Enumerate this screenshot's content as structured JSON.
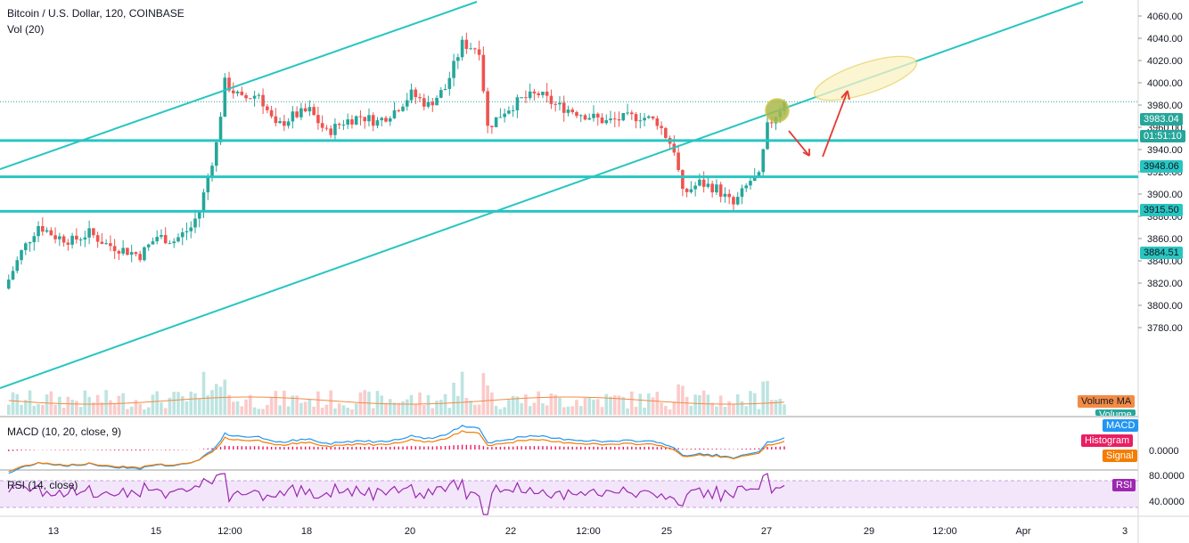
{
  "header": {
    "symbol_line": "Bitcoin / U.S. Dollar, 120, COINBASE",
    "volume_label": "Vol (20)"
  },
  "price_axis": {
    "ticks": [
      "4060.00",
      "4040.00",
      "4020.00",
      "4000.00",
      "3980.00",
      "3960.00",
      "3940.00",
      "3920.00",
      "3900.00",
      "3880.00",
      "3860.00",
      "3840.00",
      "3820.00",
      "3800.00",
      "3780.00"
    ],
    "tick_values": [
      4060,
      4040,
      4020,
      4000,
      3980,
      3960,
      3940,
      3920,
      3900,
      3880,
      3860,
      3840,
      3820,
      3800,
      3780
    ],
    "current_price": "3983.04",
    "countdown": "01:51:10",
    "level_labels": [
      "3948.06",
      "3915.50",
      "3884.51"
    ]
  },
  "time_axis": {
    "labels": [
      "13",
      "15",
      "12:00",
      "18",
      "20",
      "22",
      "12:00",
      "25",
      "27",
      "29",
      "12:00",
      "Apr",
      "3"
    ]
  },
  "legend_badges": {
    "volume_ma": "Volume MA",
    "volume": "Volume",
    "macd": "MACD",
    "histogram": "Histogram",
    "signal": "Signal",
    "rsi": "RSI"
  },
  "macd_panel": {
    "title": "MACD (10, 20, close, 9)",
    "tick": "0.0000"
  },
  "rsi_panel": {
    "title": "RSI (14, close)",
    "ticks": [
      "80.0000",
      "40.0000"
    ]
  },
  "colors": {
    "up": "#26a69a",
    "down": "#ef5350",
    "trendline": "#28c5c1",
    "volume_ma": "#f28b45",
    "macd": "#2196f3",
    "signal": "#f57c00",
    "histogram": "#e91e63",
    "rsi": "#9c27b0",
    "annotation": "#e53935"
  },
  "chart_data": {
    "type": "candlestick",
    "series_price": [
      {
        "t": 0,
        "c": 3815
      },
      {
        "t": 4,
        "c": 3848
      },
      {
        "t": 8,
        "c": 3872
      },
      {
        "t": 12,
        "c": 3862
      },
      {
        "t": 16,
        "c": 3858
      },
      {
        "t": 20,
        "c": 3865
      },
      {
        "t": 24,
        "c": 3855
      },
      {
        "t": 28,
        "c": 3850
      },
      {
        "t": 32,
        "c": 3845
      },
      {
        "t": 36,
        "c": 3862
      },
      {
        "t": 40,
        "c": 3858
      },
      {
        "t": 44,
        "c": 3870
      },
      {
        "t": 46,
        "c": 3885
      },
      {
        "t": 48,
        "c": 3915
      },
      {
        "t": 50,
        "c": 3945
      },
      {
        "t": 52,
        "c": 4000
      },
      {
        "t": 56,
        "c": 3985
      },
      {
        "t": 60,
        "c": 3990
      },
      {
        "t": 64,
        "c": 3960
      },
      {
        "t": 68,
        "c": 3970
      },
      {
        "t": 72,
        "c": 3975
      },
      {
        "t": 76,
        "c": 3955
      },
      {
        "t": 80,
        "c": 3965
      },
      {
        "t": 84,
        "c": 3970
      },
      {
        "t": 88,
        "c": 3965
      },
      {
        "t": 92,
        "c": 3975
      },
      {
        "t": 96,
        "c": 3990
      },
      {
        "t": 100,
        "c": 3980
      },
      {
        "t": 104,
        "c": 3995
      },
      {
        "t": 108,
        "c": 4035
      },
      {
        "t": 112,
        "c": 4030
      },
      {
        "t": 114,
        "c": 3960
      },
      {
        "t": 118,
        "c": 3975
      },
      {
        "t": 122,
        "c": 3985
      },
      {
        "t": 126,
        "c": 3990
      },
      {
        "t": 130,
        "c": 3980
      },
      {
        "t": 134,
        "c": 3975
      },
      {
        "t": 138,
        "c": 3970
      },
      {
        "t": 142,
        "c": 3965
      },
      {
        "t": 146,
        "c": 3968
      },
      {
        "t": 150,
        "c": 3970
      },
      {
        "t": 154,
        "c": 3965
      },
      {
        "t": 158,
        "c": 3940
      },
      {
        "t": 160,
        "c": 3900
      },
      {
        "t": 164,
        "c": 3910
      },
      {
        "t": 168,
        "c": 3905
      },
      {
        "t": 172,
        "c": 3890
      },
      {
        "t": 176,
        "c": 3912
      },
      {
        "t": 178,
        "c": 3915
      },
      {
        "t": 180,
        "c": 3960
      },
      {
        "t": 184,
        "c": 3983
      }
    ],
    "horizontal_levels": [
      3948.06,
      3915.5,
      3884.51
    ],
    "last_price": 3983.04,
    "ylim": [
      3765,
      4070
    ],
    "macd_range": [
      -1,
      1
    ],
    "rsi_ylim": [
      20,
      90
    ]
  }
}
